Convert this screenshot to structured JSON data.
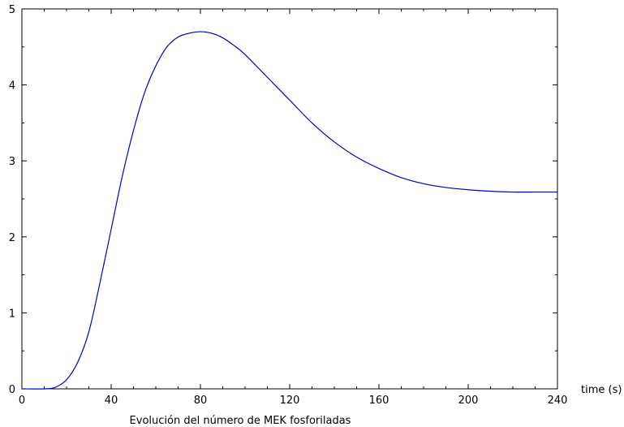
{
  "chart_data": {
    "type": "line",
    "title": "Evolución del número de MEK fosforiladas",
    "xlabel": "time (s)",
    "ylabel": "",
    "xlim": [
      0,
      240
    ],
    "ylim": [
      0,
      5
    ],
    "x_ticks": [
      "0",
      "40",
      "80",
      "120",
      "160",
      "200",
      "240"
    ],
    "y_ticks": [
      "0",
      "1",
      "2",
      "3",
      "4",
      "5"
    ],
    "grid": false,
    "legend": "none",
    "series": [
      {
        "color": "#0000cc",
        "x": [
          0,
          10,
          15,
          20,
          25,
          30,
          35,
          40,
          45,
          50,
          55,
          60,
          65,
          70,
          75,
          80,
          85,
          90,
          95,
          100,
          110,
          120,
          130,
          140,
          150,
          160,
          170,
          180,
          190,
          200,
          210,
          220,
          230,
          240
        ],
        "y": [
          0,
          0,
          0.02,
          0.12,
          0.35,
          0.75,
          1.4,
          2.1,
          2.8,
          3.4,
          3.9,
          4.25,
          4.5,
          4.63,
          4.68,
          4.7,
          4.68,
          4.62,
          4.52,
          4.4,
          4.1,
          3.8,
          3.5,
          3.25,
          3.05,
          2.9,
          2.78,
          2.7,
          2.65,
          2.62,
          2.6,
          2.59,
          2.59,
          2.59
        ]
      }
    ]
  }
}
